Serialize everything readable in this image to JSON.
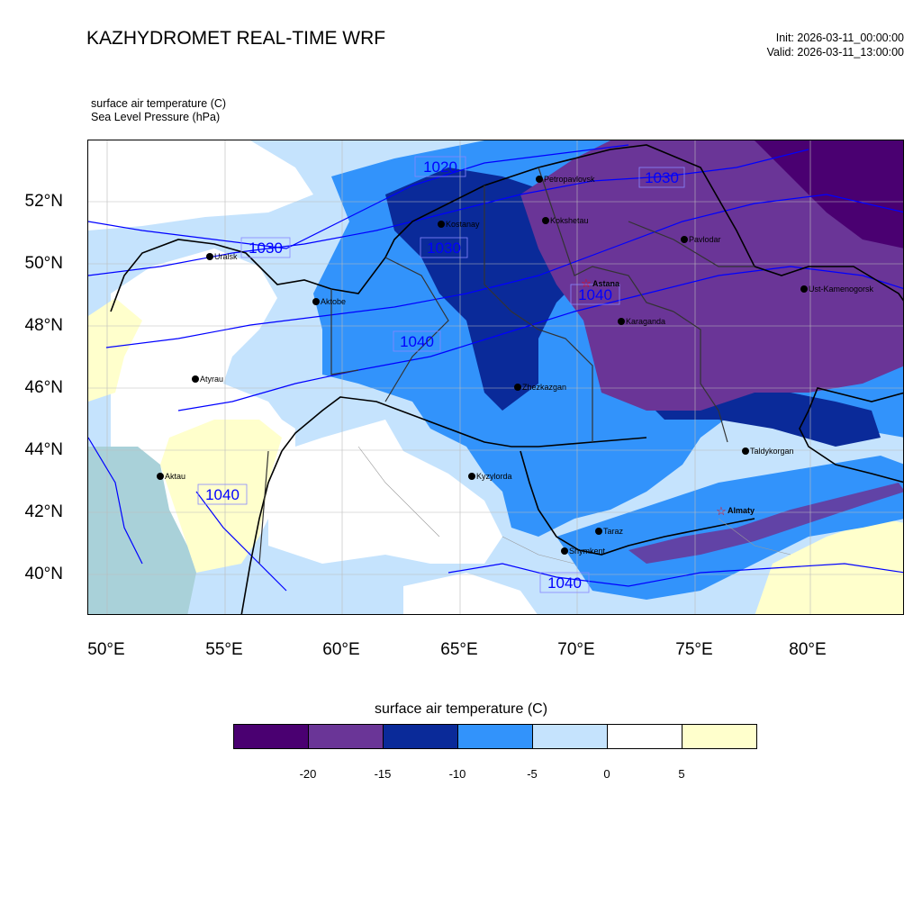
{
  "header": {
    "title": "KAZHYDROMET REAL-TIME WRF",
    "init": "Init: 2026-03-11_00:00:00",
    "valid": "Valid: 2026-03-11_13:00:00",
    "variable_1": "surface air temperature   (C)",
    "variable_2": "Sea Level Pressure   (hPa)"
  },
  "axes": {
    "lat_labels": [
      "52°N",
      "50°N",
      "48°N",
      "46°N",
      "44°N",
      "42°N",
      "40°N"
    ],
    "lon_labels": [
      "50°E",
      "55°E",
      "60°E",
      "65°E",
      "70°E",
      "75°E",
      "80°E"
    ]
  },
  "map": {
    "cities": [
      {
        "name": "Petropavlovsk",
        "capital": false
      },
      {
        "name": "Kostanay",
        "capital": false
      },
      {
        "name": "Kokshetau",
        "capital": false
      },
      {
        "name": "Pavlodar",
        "capital": false
      },
      {
        "name": "Uralsk",
        "capital": false
      },
      {
        "name": "Aktobe",
        "capital": false
      },
      {
        "name": "Astana",
        "capital": true
      },
      {
        "name": "Ust-Kamenogorsk",
        "capital": false
      },
      {
        "name": "Karaganda",
        "capital": false
      },
      {
        "name": "Atyrau",
        "capital": false
      },
      {
        "name": "Zhezkazgan",
        "capital": false
      },
      {
        "name": "Taldykorgan",
        "capital": false
      },
      {
        "name": "Aktau",
        "capital": false
      },
      {
        "name": "Kyzylorda",
        "capital": false
      },
      {
        "name": "Almaty",
        "capital": true
      },
      {
        "name": "Taraz",
        "capital": false
      },
      {
        "name": "Shymkent",
        "capital": false
      }
    ],
    "isobar_labels": [
      "1020",
      "1030",
      "1030",
      "1030",
      "1040",
      "1040",
      "1040",
      "1040"
    ],
    "colors": {
      "isobar": "#0000ff",
      "capital_marker": "#ff0000",
      "caspian": "#a9d1d9"
    }
  },
  "colorbar": {
    "title": "surface air temperature (C)",
    "colors": [
      "#4a0071",
      "#6a3597",
      "#0a2a99",
      "#3293fb",
      "#c5e3fd",
      "#ffffff",
      "#ffffcc"
    ],
    "ticks": [
      "-20",
      "-15",
      "-10",
      "-5",
      "0",
      "5"
    ]
  }
}
